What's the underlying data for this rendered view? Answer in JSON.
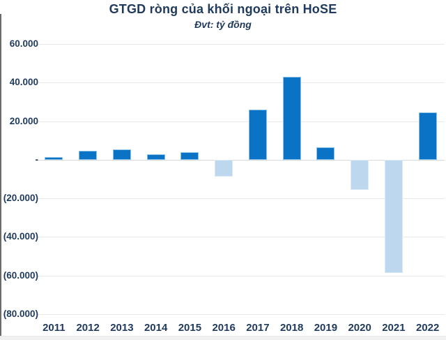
{
  "chart_data": {
    "type": "bar",
    "title": "GTGD ròng của khối ngoại trên HoSE",
    "unit_label": "Đvt: tỷ đồng",
    "xlabel": "",
    "ylabel": "",
    "categories": [
      "2011",
      "2012",
      "2013",
      "2014",
      "2015",
      "2016",
      "2017",
      "2018",
      "2019",
      "2020",
      "2021",
      "2022"
    ],
    "values": [
      1400,
      4800,
      5500,
      2900,
      4000,
      -8700,
      26000,
      43000,
      6500,
      -15700,
      -58500,
      24500
    ],
    "ylim": [
      -80000,
      60000
    ],
    "grid": true,
    "legend": "none",
    "y_ticks": [
      {
        "value": 60000,
        "label": "60.000"
      },
      {
        "value": 40000,
        "label": "40.000"
      },
      {
        "value": 20000,
        "label": "20.000"
      },
      {
        "value": 0,
        "label": "-"
      },
      {
        "value": -20000,
        "label": "(20.000)"
      },
      {
        "value": -40000,
        "label": "(40.000)"
      },
      {
        "value": -60000,
        "label": "(60.000)"
      },
      {
        "value": -80000,
        "label": "(80.000)"
      }
    ],
    "colors": {
      "positive_bar": "#0a73c6",
      "negative_bar": "#bdd7ee",
      "text": "#1f3a5c",
      "gridline": "#e8e8e8"
    }
  }
}
